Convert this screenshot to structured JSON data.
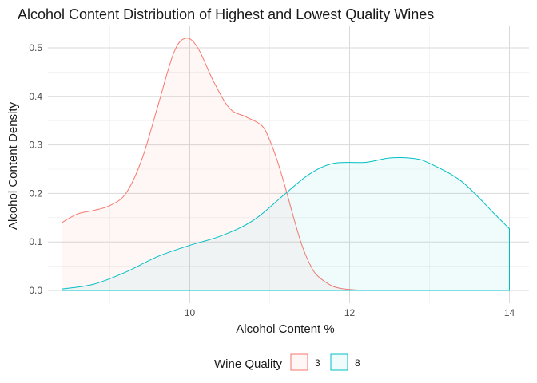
{
  "chart_data": {
    "type": "area",
    "title": "Alcohol Content Distribution of Highest and Lowest Quality Wines",
    "xlabel": "Alcohol Content %",
    "ylabel": "Alcohol Content Density",
    "xlim": [
      8.4,
      14.0
    ],
    "ylim": [
      0,
      0.5
    ],
    "x_ticks": [
      10,
      12,
      14
    ],
    "y_ticks": [
      0.0,
      0.1,
      0.2,
      0.3,
      0.4,
      0.5
    ],
    "y_tick_labels": [
      "0.0",
      "0.1",
      "0.2",
      "0.3",
      "0.4",
      "0.5"
    ],
    "grid": true,
    "legend": {
      "title": "Wine Quality",
      "position": "bottom"
    },
    "series": [
      {
        "name": "3",
        "color": "#F8766D",
        "fill": "#F8766D",
        "points": [
          [
            8.4,
            0.14
          ],
          [
            8.6,
            0.158
          ],
          [
            8.8,
            0.165
          ],
          [
            9.0,
            0.175
          ],
          [
            9.2,
            0.2
          ],
          [
            9.4,
            0.27
          ],
          [
            9.6,
            0.38
          ],
          [
            9.8,
            0.49
          ],
          [
            9.95,
            0.52
          ],
          [
            10.1,
            0.5
          ],
          [
            10.3,
            0.43
          ],
          [
            10.5,
            0.375
          ],
          [
            10.7,
            0.358
          ],
          [
            10.9,
            0.34
          ],
          [
            11.0,
            0.31
          ],
          [
            11.1,
            0.265
          ],
          [
            11.2,
            0.21
          ],
          [
            11.3,
            0.15
          ],
          [
            11.4,
            0.095
          ],
          [
            11.5,
            0.055
          ],
          [
            11.6,
            0.03
          ],
          [
            11.8,
            0.008
          ],
          [
            12.0,
            0.002
          ],
          [
            12.2,
            0.0
          ]
        ]
      },
      {
        "name": "8",
        "color": "#00BFC4",
        "fill": "#00BFC4",
        "points": [
          [
            8.4,
            0.003
          ],
          [
            8.8,
            0.013
          ],
          [
            9.2,
            0.038
          ],
          [
            9.6,
            0.07
          ],
          [
            10.0,
            0.093
          ],
          [
            10.4,
            0.113
          ],
          [
            10.8,
            0.145
          ],
          [
            11.2,
            0.2
          ],
          [
            11.5,
            0.24
          ],
          [
            11.8,
            0.262
          ],
          [
            12.2,
            0.264
          ],
          [
            12.5,
            0.273
          ],
          [
            12.8,
            0.272
          ],
          [
            13.0,
            0.262
          ],
          [
            13.4,
            0.225
          ],
          [
            13.8,
            0.16
          ],
          [
            14.0,
            0.127
          ]
        ]
      }
    ]
  }
}
